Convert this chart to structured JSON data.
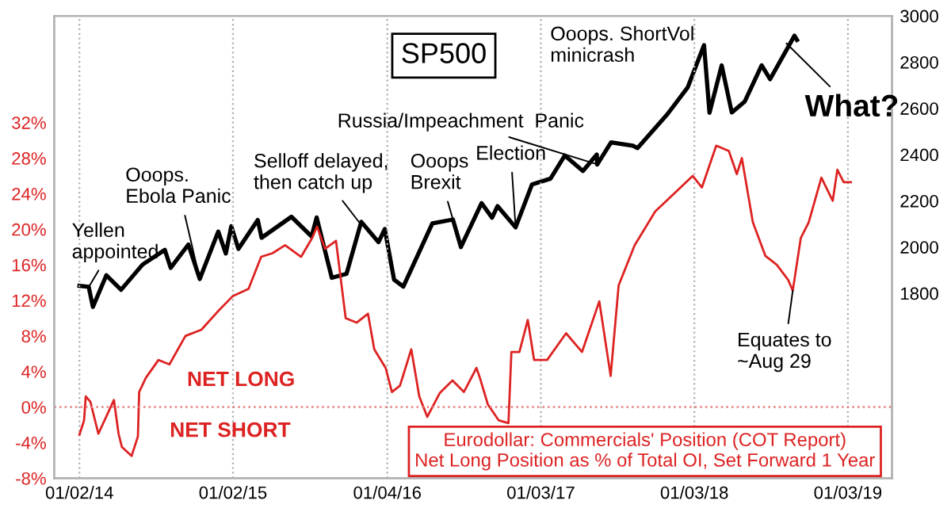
{
  "chart_data": {
    "type": "line",
    "series": [
      {
        "name": "SP500",
        "color": "#000000",
        "axis": "y2",
        "x": [
          "2014-01-02",
          "2014-01-24",
          "2014-02-03",
          "2014-03-07",
          "2014-04-11",
          "2014-06-01",
          "2014-07-24",
          "2014-08-07",
          "2014-09-18",
          "2014-10-15",
          "2014-11-28",
          "2014-12-16",
          "2014-12-29",
          "2015-01-15",
          "2015-03-02",
          "2015-03-11",
          "2015-05-21",
          "2015-07-08",
          "2015-07-20",
          "2015-08-25",
          "2015-09-29",
          "2015-11-03",
          "2015-12-14",
          "2015-12-29",
          "2016-01-20",
          "2016-02-11",
          "2016-04-20",
          "2016-06-08",
          "2016-06-27",
          "2016-08-15",
          "2016-09-09",
          "2016-09-22",
          "2016-11-04",
          "2016-12-13",
          "2017-01-26",
          "2017-03-01",
          "2017-04-13",
          "2017-05-16",
          "2017-05-17",
          "2017-06-19",
          "2017-08-10",
          "2017-08-21",
          "2017-10-31",
          "2017-12-18",
          "2018-01-26",
          "2018-02-08",
          "2018-03-09",
          "2018-04-02",
          "2018-05-03",
          "2018-06-12",
          "2018-07-02",
          "2018-08-29",
          "2018-09-04"
        ],
        "values": [
          1832,
          1828,
          1741,
          1878,
          1815,
          1924,
          1988,
          1910,
          2011,
          1862,
          2067,
          1972,
          2090,
          1992,
          2117,
          2040,
          2131,
          2046,
          2128,
          1867,
          1884,
          2109,
          2021,
          2078,
          1859,
          1829,
          2102,
          2119,
          2000,
          2190,
          2127,
          2177,
          2085,
          2271,
          2296,
          2396,
          2329,
          2400,
          2357,
          2453,
          2438,
          2428,
          2575,
          2690,
          2873,
          2581,
          2786,
          2582,
          2630,
          2786,
          2726,
          2914,
          2896
        ]
      },
      {
        "name": "Eurodollar: Commercials' Position (COT Report)\nNet Long Position as % of Total OI, Set Forward 1 Year",
        "color": "#dd2222",
        "x": [
          "2014-01-02",
          "2014-01-13",
          "2014-01-17",
          "2014-01-28",
          "2014-02-16",
          "2014-03-25",
          "2014-04-05",
          "2014-04-13",
          "2014-05-06",
          "2014-05-21",
          "2014-05-24",
          "2014-06-09",
          "2014-07-09",
          "2014-08-04",
          "2014-09-11",
          "2014-10-19",
          "2014-11-26",
          "2015-01-02",
          "2015-02-08",
          "2015-03-10",
          "2015-04-06",
          "2015-05-06",
          "2015-06-13",
          "2015-07-09",
          "2015-07-21",
          "2015-08-09",
          "2015-09-04",
          "2015-09-27",
          "2015-10-23",
          "2015-11-19",
          "2015-12-04",
          "2015-12-31",
          "2016-01-15",
          "2016-02-03",
          "2016-03-01",
          "2016-03-20",
          "2016-04-08",
          "2016-05-08",
          "2016-06-07",
          "2016-07-04",
          "2016-08-03",
          "2016-08-11",
          "2016-08-30",
          "2016-09-25",
          "2016-10-18",
          "2016-10-25",
          "2016-11-13",
          "2016-12-03",
          "2016-12-18",
          "2017-01-18",
          "2017-03-04",
          "2017-04-11",
          "2017-05-22",
          "2017-06-18",
          "2017-07-07",
          "2017-08-14",
          "2017-10-02",
          "2017-12-30",
          "2018-01-21",
          "2018-02-24",
          "2018-03-26",
          "2018-04-14",
          "2018-04-26",
          "2018-05-22",
          "2018-06-21",
          "2018-07-18",
          "2018-08-14",
          "2018-08-25",
          "2018-09-13",
          "2018-10-02",
          "2018-11-01",
          "2018-11-28",
          "2018-12-09",
          "2018-12-24",
          "2019-01-10"
        ],
        "values": [
          -3.1,
          -1.5,
          1.2,
          0.6,
          -3,
          0.8,
          -3,
          -4.5,
          -5.5,
          -3.3,
          1.7,
          3.3,
          5.3,
          4.8,
          8,
          8.7,
          10.7,
          12.5,
          13.3,
          16.9,
          17.3,
          18.2,
          16.9,
          19,
          20.3,
          17.8,
          18.7,
          10,
          9.5,
          10.5,
          6.5,
          4.4,
          1.7,
          2.4,
          6.5,
          1.2,
          -1.1,
          1.6,
          3,
          1.7,
          4.4,
          3.3,
          0.3,
          -1.5,
          -1.8,
          6.2,
          6.2,
          9.8,
          5.3,
          5.3,
          8.3,
          6.2,
          11.9,
          3.5,
          13.7,
          18.2,
          22,
          26,
          24.7,
          29.4,
          28.8,
          26.2,
          28,
          20.8,
          17,
          16,
          14.3,
          13.1,
          19,
          20.8,
          25.8,
          23.2,
          26.7,
          25.3,
          25.3
        ]
      }
    ],
    "xlim": [
      "2013-11-03",
      "2019-04-18"
    ],
    "xticks": [
      {
        "value": "2014-01-02",
        "label": "01/02/14"
      },
      {
        "value": "2015-01-02",
        "label": "01/02/15"
      },
      {
        "value": "2016-01-04",
        "label": "01/04/16"
      },
      {
        "value": "2017-01-03",
        "label": "01/03/17"
      },
      {
        "value": "2018-01-03",
        "label": "01/03/18"
      },
      {
        "value": "2019-01-03",
        "label": "01/03/19"
      }
    ],
    "ylim": [
      -8,
      44
    ],
    "yticks": [
      {
        "value": -8,
        "label": "-8%"
      },
      {
        "value": -4,
        "label": "-4%"
      },
      {
        "value": 0,
        "label": "0%"
      },
      {
        "value": 4,
        "label": "4%"
      },
      {
        "value": 8,
        "label": "8%"
      },
      {
        "value": 12,
        "label": "12%"
      },
      {
        "value": 16,
        "label": "16%"
      },
      {
        "value": 20,
        "label": "20%"
      },
      {
        "value": 24,
        "label": "24%"
      },
      {
        "value": 28,
        "label": "28%"
      },
      {
        "value": 32,
        "label": "32%"
      }
    ],
    "y2lim": [
      1000,
      3000
    ],
    "y2ticks": [
      1800,
      2000,
      2200,
      2400,
      2600,
      2800,
      3000
    ],
    "grid": "x",
    "ref_lines": [
      {
        "axis": "y",
        "value": 0,
        "color": "#e88080",
        "line_style": "dotted"
      }
    ],
    "annotations": [
      {
        "text": "Yellen\nappointed",
        "x": "2014-01-24",
        "y": 13.5
      },
      {
        "text": "Ooops.\nEbola Panic",
        "x": "2014-10-15",
        "y": 14.4
      },
      {
        "text": "Selloff delayed,\nthen catch up",
        "x": "2015-11-01",
        "y": 20.6
      },
      {
        "text": "Ooops\nBrexit",
        "x": "2016-06-27",
        "y": 18
      },
      {
        "text": "Election",
        "x": "2016-11-04",
        "y": 20.2
      },
      {
        "text": "Russia/Impeachment  Panic",
        "x": "2017-05-17",
        "y": 27.3
      },
      {
        "text": "Ooops. ShortVol\nminicrash",
        "x": "2018-01-26",
        "y": 40.7
      },
      {
        "text": "What?",
        "x": "2018-08-10",
        "y": 40.9
      },
      {
        "text": "Equates to\n~Aug 29",
        "x": "2018-08-25",
        "y": 13.1
      },
      "NET LONG",
      "NET SHORT"
    ]
  }
}
